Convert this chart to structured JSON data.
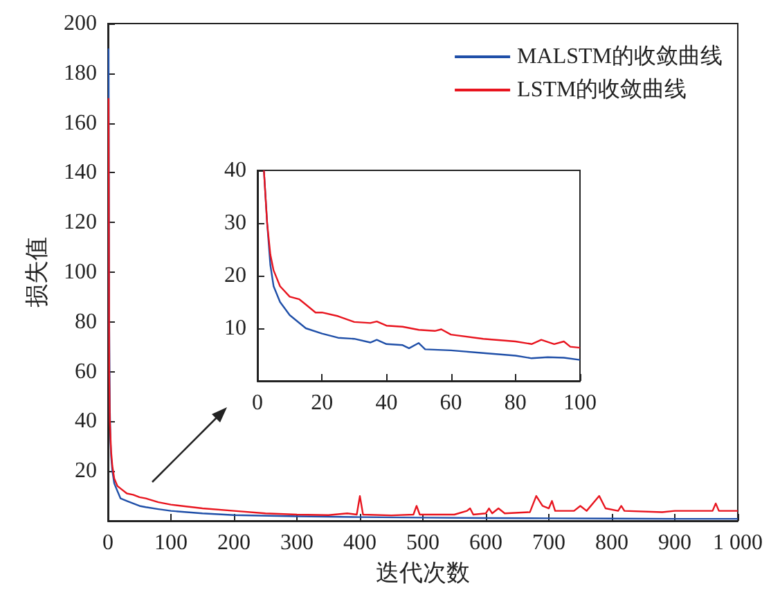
{
  "chart_data": [
    {
      "type": "line",
      "xlabel": "迭代次数",
      "ylabel": "损失值",
      "xlim": [
        0,
        1000
      ],
      "ylim": [
        0,
        200
      ],
      "xticks": [
        0,
        100,
        200,
        300,
        400,
        500,
        600,
        700,
        800,
        900,
        {
          "value": 1000,
          "label": "1 000"
        }
      ],
      "yticks": [
        20,
        40,
        60,
        80,
        100,
        120,
        140,
        160,
        180,
        200
      ],
      "legend": "top right",
      "marker": "none",
      "line_style": "solid",
      "grid": false,
      "series": [
        {
          "name": "MALSTM的收敛曲线",
          "color": "#1f4fa8",
          "x": [
            1,
            2,
            3,
            4,
            5,
            7,
            10,
            15,
            20,
            30,
            40,
            50,
            60,
            80,
            100,
            150,
            200,
            300,
            400,
            500,
            600,
            700,
            800,
            900,
            1000
          ],
          "values": [
            190,
            80,
            45,
            32,
            26,
            20,
            15,
            12,
            9,
            8,
            7,
            6,
            5.5,
            4.7,
            4,
            3,
            2.3,
            1.8,
            1.5,
            1.3,
            1.1,
            1,
            0.9,
            0.8,
            0.8
          ]
        },
        {
          "name": "LSTM的收敛曲线",
          "color": "#e8141e",
          "x": [
            1,
            2,
            3,
            5,
            7,
            10,
            15,
            20,
            30,
            40,
            50,
            60,
            80,
            100,
            150,
            200,
            250,
            300,
            350,
            380,
            395,
            400,
            405,
            450,
            485,
            490,
            495,
            550,
            570,
            575,
            580,
            600,
            605,
            610,
            620,
            630,
            670,
            680,
            690,
            700,
            705,
            710,
            740,
            750,
            760,
            780,
            790,
            810,
            815,
            820,
            880,
            900,
            960,
            965,
            970,
            1000
          ],
          "values": [
            170,
            60,
            40,
            28,
            22,
            17,
            14,
            13,
            11,
            10.5,
            9.5,
            9,
            7.5,
            6.5,
            5,
            4,
            3,
            2.5,
            2.3,
            3,
            2.5,
            10,
            2.5,
            2.2,
            2.5,
            6,
            2.5,
            2.5,
            4,
            5,
            2.5,
            3,
            5,
            3,
            5,
            3,
            3.5,
            10,
            6,
            5,
            8,
            4,
            4,
            6,
            4,
            10,
            5,
            4,
            6,
            4,
            3.5,
            4,
            4,
            7,
            4,
            4
          ]
        }
      ]
    },
    {
      "type": "line",
      "xlim": [
        0,
        100
      ],
      "ylim": [
        0,
        40
      ],
      "xticks": [
        0,
        20,
        40,
        60,
        80,
        100
      ],
      "yticks": [
        10,
        20,
        30,
        40
      ],
      "marker": "none",
      "line_style": "solid",
      "grid": false,
      "series": [
        {
          "color": "#1f4fa8",
          "x": [
            2,
            3,
            4,
            5,
            7,
            10,
            15,
            20,
            25,
            30,
            35,
            37,
            40,
            45,
            47,
            50,
            52,
            60,
            70,
            80,
            85,
            90,
            95,
            100
          ],
          "values": [
            40,
            30,
            22,
            18,
            15,
            12.5,
            10,
            9,
            8.2,
            8,
            7.3,
            7.8,
            7,
            6.8,
            6.2,
            7.2,
            6,
            5.8,
            5.3,
            4.8,
            4.3,
            4.5,
            4.4,
            4
          ]
        },
        {
          "color": "#e8141e",
          "x": [
            2,
            3,
            4,
            5,
            7,
            10,
            13,
            15,
            18,
            20,
            25,
            30,
            35,
            37,
            40,
            45,
            50,
            55,
            57,
            60,
            70,
            80,
            85,
            88,
            92,
            95,
            97,
            100
          ],
          "values": [
            40,
            30,
            24,
            21,
            18,
            16,
            15.5,
            14.5,
            13,
            13,
            12.3,
            11.2,
            11,
            11.3,
            10.5,
            10.3,
            9.7,
            9.5,
            9.8,
            8.8,
            8,
            7.5,
            7,
            7.8,
            7,
            7.5,
            6.5,
            6.3
          ]
        }
      ]
    }
  ]
}
